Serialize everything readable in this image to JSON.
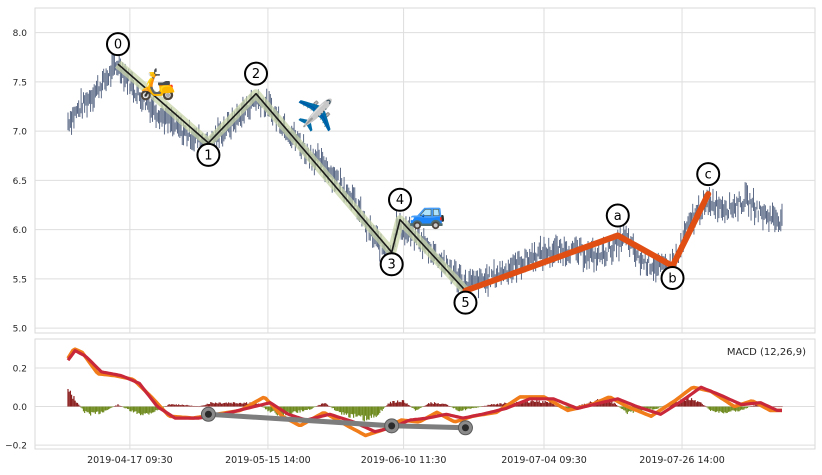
{
  "chart_data": [
    {
      "type": "line",
      "panel": "price",
      "title": "",
      "xlabel": "",
      "ylabel": "",
      "ylim": [
        4.95,
        8.25
      ],
      "yticks": [
        "5.0",
        "5.5",
        "6.0",
        "6.5",
        "7.0",
        "7.5",
        "8.0"
      ],
      "x_range_bars": [
        0,
        600
      ],
      "grid": true,
      "series": [
        {
          "role": "price-bars",
          "color": "#4a5a7a",
          "anchors": [
            [
              0,
              7.1
            ],
            [
              30,
              7.5
            ],
            [
              42,
              7.68
            ],
            [
              60,
              7.35
            ],
            [
              95,
              7.0
            ],
            [
              118,
              6.88
            ],
            [
              140,
              7.1
            ],
            [
              158,
              7.33
            ],
            [
              170,
              7.22
            ],
            [
              182,
              7.05
            ],
            [
              200,
              6.8
            ],
            [
              220,
              6.6
            ],
            [
              238,
              6.35
            ],
            [
              252,
              6.0
            ],
            [
              262,
              5.85
            ],
            [
              272,
              5.75
            ],
            [
              276,
              6.05
            ],
            [
              282,
              6.0
            ],
            [
              290,
              5.95
            ],
            [
              305,
              5.8
            ],
            [
              320,
              5.6
            ],
            [
              334,
              5.45
            ],
            [
              350,
              5.48
            ],
            [
              370,
              5.6
            ],
            [
              395,
              5.75
            ],
            [
              420,
              5.8
            ],
            [
              445,
              5.72
            ],
            [
              462,
              5.85
            ],
            [
              468,
              5.92
            ],
            [
              480,
              5.7
            ],
            [
              500,
              5.6
            ],
            [
              512,
              5.7
            ],
            [
              520,
              6.0
            ],
            [
              530,
              6.2
            ],
            [
              540,
              6.28
            ],
            [
              555,
              6.22
            ],
            [
              570,
              6.3
            ],
            [
              585,
              6.15
            ],
            [
              600,
              6.1
            ]
          ]
        },
        {
          "role": "wave-path-impulse",
          "color": "#1a1a1a",
          "points": [
            [
              42,
              7.68
            ],
            [
              118,
              6.88
            ],
            [
              158,
              7.38
            ],
            [
              272,
              5.77
            ],
            [
              279,
              6.1
            ],
            [
              334,
              5.38
            ]
          ]
        },
        {
          "role": "wave-path-correction",
          "color": "#e04e14",
          "points": [
            [
              334,
              5.38
            ],
            [
              462,
              5.94
            ],
            [
              508,
              5.63
            ],
            [
              538,
              6.36
            ]
          ]
        }
      ],
      "annotations": [
        {
          "label": "0",
          "x": 42,
          "y": 7.68
        },
        {
          "label": "1",
          "x": 118,
          "y": 6.88
        },
        {
          "label": "2",
          "x": 158,
          "y": 7.38
        },
        {
          "label": "3",
          "x": 272,
          "y": 5.77
        },
        {
          "label": "4",
          "x": 279,
          "y": 6.1
        },
        {
          "label": "5",
          "x": 334,
          "y": 5.38
        },
        {
          "label": "a",
          "x": 462,
          "y": 5.94
        },
        {
          "label": "b",
          "x": 508,
          "y": 5.63
        },
        {
          "label": "c",
          "x": 538,
          "y": 6.36
        }
      ],
      "icons": [
        {
          "name": "scooter-icon",
          "glyph": "🛵",
          "x": 75,
          "y": 7.5
        },
        {
          "name": "airplane-icon",
          "glyph": "✈️",
          "x": 208,
          "y": 7.18
        },
        {
          "name": "car-icon",
          "glyph": "🚙",
          "x": 302,
          "y": 6.19
        }
      ]
    },
    {
      "type": "line",
      "panel": "macd",
      "title": "",
      "xlabel": "",
      "ylabel": "",
      "legend_text": "MACD (12,26,9)",
      "legend_position": "top-right",
      "ylim": [
        -0.22,
        0.35
      ],
      "yticks": [
        "0.2",
        "0.0",
        "−0.2"
      ],
      "x_range_bars": [
        0,
        600
      ],
      "xticks": [
        {
          "x": 52,
          "label": "2019-04-17 09:30"
        },
        {
          "x": 168,
          "label": "2019-05-15 14:00"
        },
        {
          "x": 282,
          "label": "2019-06-10 11:30"
        },
        {
          "x": 400,
          "label": "2019-07-04 09:30"
        },
        {
          "x": 516,
          "label": "2019-07-26 14:00"
        }
      ],
      "grid": true,
      "series": [
        {
          "name": "",
          "role": "macd",
          "color": "#f07c1a",
          "anchors": [
            [
              0,
              0.25
            ],
            [
              5,
              0.3
            ],
            [
              12,
              0.28
            ],
            [
              25,
              0.17
            ],
            [
              40,
              0.16
            ],
            [
              55,
              0.14
            ],
            [
              70,
              0.05
            ],
            [
              85,
              -0.05
            ],
            [
              105,
              -0.06
            ],
            [
              125,
              -0.04
            ],
            [
              145,
              -0.02
            ],
            [
              165,
              0.05
            ],
            [
              180,
              -0.05
            ],
            [
              195,
              -0.1
            ],
            [
              215,
              -0.03
            ],
            [
              235,
              -0.1
            ],
            [
              250,
              -0.15
            ],
            [
              265,
              -0.12
            ],
            [
              280,
              -0.07
            ],
            [
              295,
              -0.08
            ],
            [
              310,
              -0.03
            ],
            [
              325,
              -0.08
            ],
            [
              340,
              -0.05
            ],
            [
              360,
              -0.03
            ],
            [
              380,
              0.05
            ],
            [
              400,
              0.05
            ],
            [
              420,
              -0.02
            ],
            [
              440,
              0.01
            ],
            [
              455,
              0.05
            ],
            [
              470,
              0.0
            ],
            [
              490,
              -0.05
            ],
            [
              510,
              0.03
            ],
            [
              525,
              0.1
            ],
            [
              540,
              0.08
            ],
            [
              560,
              0.0
            ],
            [
              575,
              0.03
            ],
            [
              590,
              -0.02
            ],
            [
              600,
              -0.02
            ]
          ]
        },
        {
          "name": "",
          "role": "signal",
          "color": "#c8283a",
          "anchors": [
            [
              0,
              0.24
            ],
            [
              6,
              0.29
            ],
            [
              15,
              0.26
            ],
            [
              28,
              0.18
            ],
            [
              45,
              0.16
            ],
            [
              60,
              0.12
            ],
            [
              75,
              0.0
            ],
            [
              90,
              -0.06
            ],
            [
              110,
              -0.06
            ],
            [
              130,
              -0.04
            ],
            [
              150,
              -0.01
            ],
            [
              170,
              0.02
            ],
            [
              185,
              -0.04
            ],
            [
              200,
              -0.07
            ],
            [
              220,
              -0.04
            ],
            [
              240,
              -0.08
            ],
            [
              258,
              -0.13
            ],
            [
              272,
              -0.11
            ],
            [
              287,
              -0.07
            ],
            [
              302,
              -0.06
            ],
            [
              318,
              -0.04
            ],
            [
              332,
              -0.06
            ],
            [
              348,
              -0.04
            ],
            [
              368,
              -0.01
            ],
            [
              388,
              0.04
            ],
            [
              408,
              0.04
            ],
            [
              428,
              -0.01
            ],
            [
              448,
              0.02
            ],
            [
              462,
              0.04
            ],
            [
              478,
              0.0
            ],
            [
              498,
              -0.04
            ],
            [
              516,
              0.03
            ],
            [
              532,
              0.1
            ],
            [
              548,
              0.06
            ],
            [
              566,
              0.01
            ],
            [
              582,
              0.02
            ],
            [
              596,
              -0.02
            ],
            [
              600,
              -0.02
            ]
          ]
        },
        {
          "name": "",
          "role": "divergence-line",
          "color": "#7d7d7d",
          "points": [
            [
              118,
              -0.04
            ],
            [
              272,
              -0.1
            ],
            [
              334,
              -0.11
            ]
          ]
        }
      ],
      "histogram": {
        "positive_color": "#8b1e1e",
        "negative_color": "#6e8a1e",
        "anchors": [
          [
            0,
            0.08
          ],
          [
            3,
            0.06
          ],
          [
            8,
            0.02
          ],
          [
            14,
            -0.03
          ],
          [
            22,
            -0.04
          ],
          [
            32,
            -0.02
          ],
          [
            42,
            0.01
          ],
          [
            55,
            -0.03
          ],
          [
            65,
            -0.04
          ],
          [
            75,
            -0.02
          ],
          [
            85,
            0.01
          ],
          [
            95,
            0.01
          ],
          [
            110,
            0.0
          ],
          [
            120,
            0.02
          ],
          [
            135,
            0.02
          ],
          [
            148,
            0.02
          ],
          [
            158,
            0.02
          ],
          [
            168,
            -0.02
          ],
          [
            178,
            -0.04
          ],
          [
            192,
            -0.03
          ],
          [
            205,
            -0.01
          ],
          [
            215,
            0.02
          ],
          [
            228,
            -0.03
          ],
          [
            240,
            -0.05
          ],
          [
            252,
            -0.07
          ],
          [
            262,
            -0.03
          ],
          [
            270,
            0.02
          ],
          [
            282,
            0.03
          ],
          [
            292,
            -0.02
          ],
          [
            305,
            0.02
          ],
          [
            318,
            0.01
          ],
          [
            328,
            -0.02
          ],
          [
            340,
            -0.01
          ],
          [
            355,
            0.01
          ],
          [
            375,
            0.02
          ],
          [
            392,
            0.03
          ],
          [
            405,
            0.02
          ],
          [
            418,
            -0.02
          ],
          [
            432,
            0.01
          ],
          [
            445,
            0.03
          ],
          [
            458,
            0.02
          ],
          [
            470,
            -0.03
          ],
          [
            482,
            -0.02
          ],
          [
            495,
            -0.01
          ],
          [
            508,
            0.02
          ],
          [
            520,
            0.04
          ],
          [
            530,
            0.03
          ],
          [
            540,
            -0.02
          ],
          [
            552,
            -0.03
          ],
          [
            565,
            -0.02
          ],
          [
            578,
            0.01
          ],
          [
            590,
            0.0
          ],
          [
            600,
            0.0
          ]
        ]
      }
    }
  ]
}
